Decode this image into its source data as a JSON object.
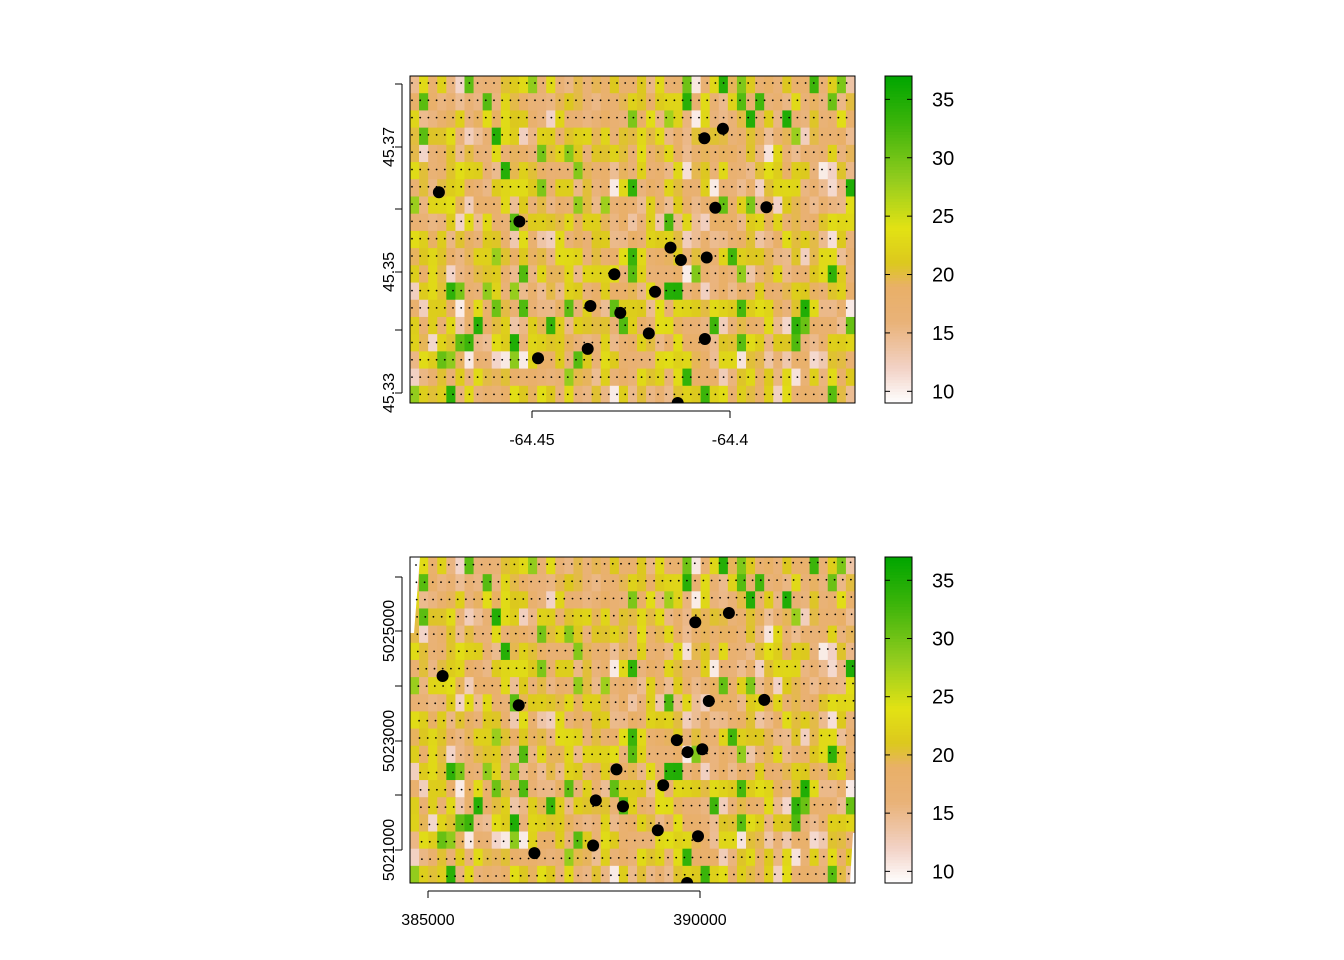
{
  "chart_data": [
    {
      "type": "heatmap",
      "title": "",
      "xlabel": "",
      "ylabel": "",
      "xlim": [
        -64.4677,
        -64.3693
      ],
      "ylim": [
        45.3297,
        45.3823
      ],
      "x_ticks": [
        -64.45,
        -64.4
      ],
      "x_tick_labels": [
        "-64.45",
        "-64.4"
      ],
      "y_ticks": [
        45.33,
        45.34,
        45.35,
        45.36,
        45.37,
        45.38
      ],
      "y_tick_labels": [
        "45.33",
        "",
        "45.35",
        "",
        "45.37",
        ""
      ],
      "grid": false,
      "legend": {
        "position": "right",
        "min": 9,
        "max": 37,
        "breaks": [
          10,
          15,
          20,
          25,
          30,
          35
        ],
        "labels": [
          "10",
          "15",
          "20",
          "25",
          "30",
          "35"
        ],
        "colors": [
          "#ffffff",
          "#f2cbbb",
          "#e9ae70",
          "#dcc91a",
          "#e0e21a",
          "#77c21a",
          "#00a600"
        ]
      },
      "points": [
        {
          "x": -64.4613,
          "y": 45.3636
        },
        {
          "x": -64.4435,
          "y": 45.3589
        },
        {
          "x": -64.4026,
          "y": 45.3723
        },
        {
          "x": -64.3985,
          "y": 45.3738
        },
        {
          "x": -64.4002,
          "y": 45.3611
        },
        {
          "x": -64.3889,
          "y": 45.3612
        },
        {
          "x": -64.4101,
          "y": 45.3547
        },
        {
          "x": -64.4078,
          "y": 45.3527
        },
        {
          "x": -64.4021,
          "y": 45.3531
        },
        {
          "x": -64.4225,
          "y": 45.3504
        },
        {
          "x": -64.4278,
          "y": 45.3453
        },
        {
          "x": -64.4212,
          "y": 45.3442
        },
        {
          "x": -64.4135,
          "y": 45.3476
        },
        {
          "x": -64.4149,
          "y": 45.3409
        },
        {
          "x": -64.4025,
          "y": 45.34
        },
        {
          "x": -64.4284,
          "y": 45.3384
        },
        {
          "x": -64.4394,
          "y": 45.3369
        },
        {
          "x": -64.4085,
          "y": 45.3297
        }
      ]
    },
    {
      "type": "heatmap",
      "title": "",
      "xlabel": "",
      "ylabel": "",
      "xlim": [
        384680,
        392870
      ],
      "ylim": [
        5020450,
        5026450
      ],
      "x_ticks": [
        385000,
        390000
      ],
      "x_tick_labels": [
        "385000",
        "390000"
      ],
      "y_ticks": [
        5021000,
        5022000,
        5023000,
        5024000,
        5025000,
        5026000
      ],
      "y_tick_labels": [
        "5021000",
        "",
        "5023000",
        "",
        "5025000",
        ""
      ],
      "grid": false,
      "legend": {
        "position": "right",
        "min": 9,
        "max": 37,
        "breaks": [
          10,
          15,
          20,
          25,
          30,
          35
        ],
        "labels": [
          "10",
          "15",
          "20",
          "25",
          "30",
          "35"
        ],
        "colors": [
          "#ffffff",
          "#f2cbbb",
          "#e9ae70",
          "#dcc91a",
          "#e0e21a",
          "#77c21a",
          "#00a600"
        ]
      },
      "points": [
        {
          "x": 385280,
          "y": 5024260
        },
        {
          "x": 386680,
          "y": 5023720
        },
        {
          "x": 389930,
          "y": 5025250
        },
        {
          "x": 390550,
          "y": 5025420
        },
        {
          "x": 390180,
          "y": 5023800
        },
        {
          "x": 391200,
          "y": 5023820
        },
        {
          "x": 389590,
          "y": 5023080
        },
        {
          "x": 389790,
          "y": 5022860
        },
        {
          "x": 390060,
          "y": 5022910
        },
        {
          "x": 388480,
          "y": 5022540
        },
        {
          "x": 388100,
          "y": 5021970
        },
        {
          "x": 388600,
          "y": 5021860
        },
        {
          "x": 389340,
          "y": 5022250
        },
        {
          "x": 389240,
          "y": 5021420
        },
        {
          "x": 389980,
          "y": 5021310
        },
        {
          "x": 388050,
          "y": 5021140
        },
        {
          "x": 386970,
          "y": 5021000
        },
        {
          "x": 389780,
          "y": 5020450
        }
      ]
    }
  ]
}
